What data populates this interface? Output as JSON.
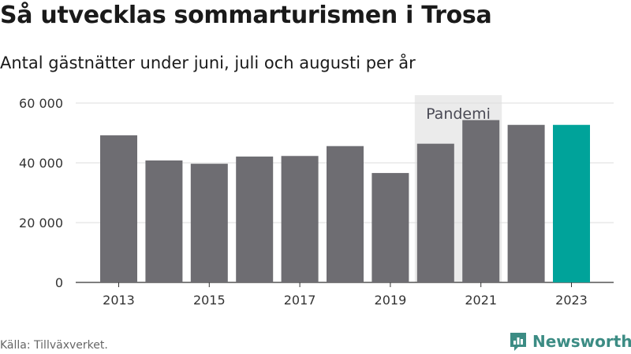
{
  "title": "Så utvecklas sommarturismen i Trosa",
  "subtitle": "Antal gästnätter under juni, juli och augusti per år",
  "source": "Källa: Tillväxverket.",
  "brand": {
    "name": "Newsworthy",
    "color": "#3c8c84",
    "icon": "newsworthy-logo-icon"
  },
  "colors": {
    "bar": "#6e6d72",
    "highlight": "#00a39a",
    "band": "#ebebeb",
    "grid": "#dddddd"
  },
  "chart_data": {
    "type": "bar",
    "categories": [
      "2013",
      "2014",
      "2015",
      "2016",
      "2017",
      "2018",
      "2019",
      "2020",
      "2021",
      "2022",
      "2023"
    ],
    "values": [
      49200,
      40800,
      39700,
      42100,
      42300,
      45600,
      36600,
      46400,
      54300,
      52700,
      52700
    ],
    "highlight_category": "2023",
    "x_tick_labels": [
      "2013",
      "2015",
      "2017",
      "2019",
      "2021",
      "2023"
    ],
    "y_ticks": [
      0,
      20000,
      40000,
      60000
    ],
    "y_tick_labels": [
      "0",
      "20 000",
      "40 000",
      "60 000"
    ],
    "ylim": [
      0,
      60000
    ],
    "grid": true,
    "annotation": {
      "label": "Pandemi",
      "from": "2020",
      "to": "2021"
    }
  }
}
